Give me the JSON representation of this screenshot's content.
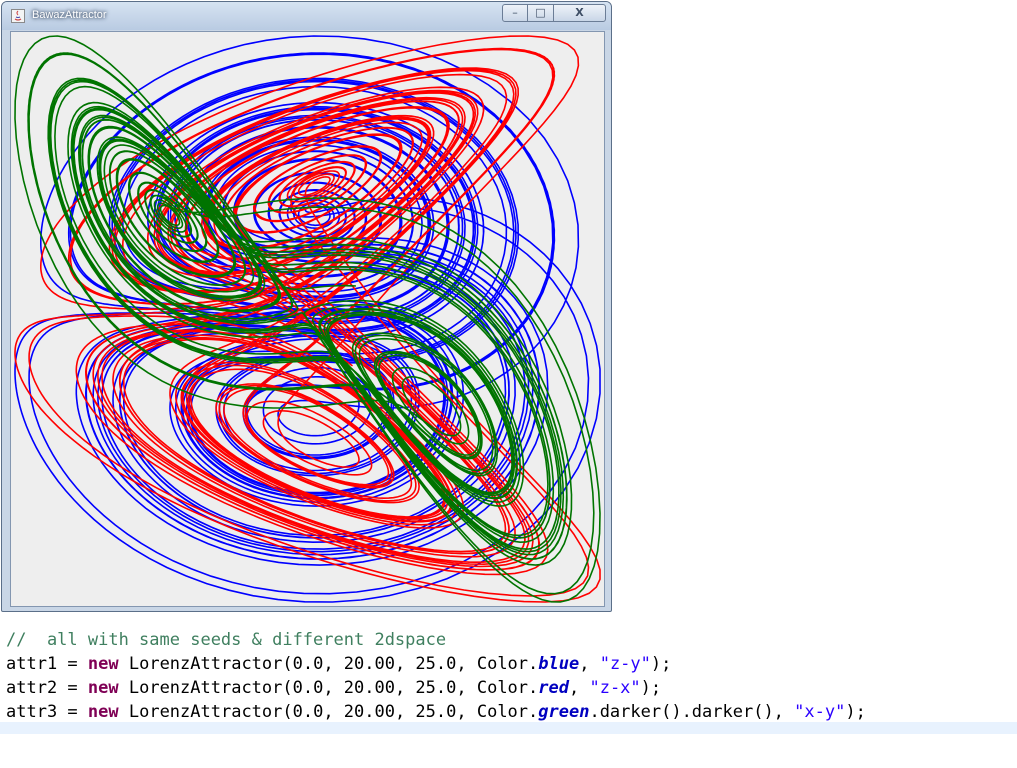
{
  "window": {
    "title": "BawazAttractor",
    "controls": {
      "minimize": "–",
      "maximize": "□",
      "close": "X"
    }
  },
  "attractors": [
    {
      "color": "#0000ff",
      "projection": "z-y"
    },
    {
      "color": "#ff0000",
      "projection": "z-x"
    },
    {
      "color": "#007400",
      "projection": "x-y"
    }
  ],
  "code": {
    "comment": "//  all with same seeds & different 2dspace",
    "lines": [
      {
        "var": "attr1",
        "eq": " = ",
        "kw": "new",
        "ctor": " LorenzAttractor(0.0, 20.00, 25.0, Color.",
        "color": "blue",
        "rest": ", ",
        "str": "\"z-y\"",
        "end": ");"
      },
      {
        "var": "attr2",
        "eq": " = ",
        "kw": "new",
        "ctor": " LorenzAttractor(0.0, 20.00, 25.0, Color.",
        "color": "red",
        "rest": ", ",
        "str": "\"z-x\"",
        "end": ");"
      },
      {
        "var": "attr3",
        "eq": " = ",
        "kw": "new",
        "ctor": " LorenzAttractor(0.0, 20.00, 25.0, Color.",
        "color": "green",
        "rest": ".darker().darker(), ",
        "str": "\"x-y\"",
        "end": ");"
      }
    ]
  }
}
